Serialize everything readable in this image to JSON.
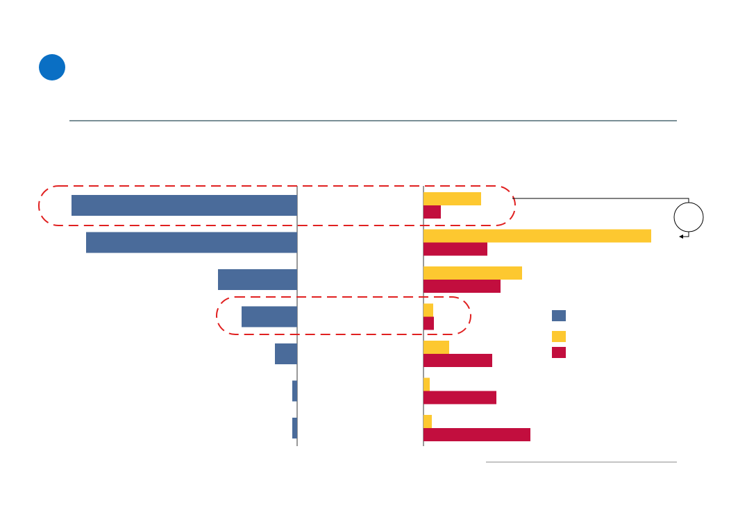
{
  "chart_data": [
    {
      "type": "bar",
      "orientation": "horizontal",
      "x_reversed": true,
      "xlim": [
        0,
        330
      ],
      "color": "#4a6b9a",
      "values": [
        325,
        304,
        114,
        80,
        32,
        7,
        7
      ]
    },
    {
      "type": "bar",
      "orientation": "horizontal",
      "x_reversed": false,
      "xlim": [
        0,
        350
      ],
      "series": [
        {
          "color": "#fdc830",
          "values": [
            83,
            328,
            142,
            14,
            37,
            9,
            12
          ]
        },
        {
          "color": "#c20e3e",
          "values": [
            25,
            92,
            111,
            15,
            99,
            105,
            154
          ]
        }
      ]
    }
  ]
}
